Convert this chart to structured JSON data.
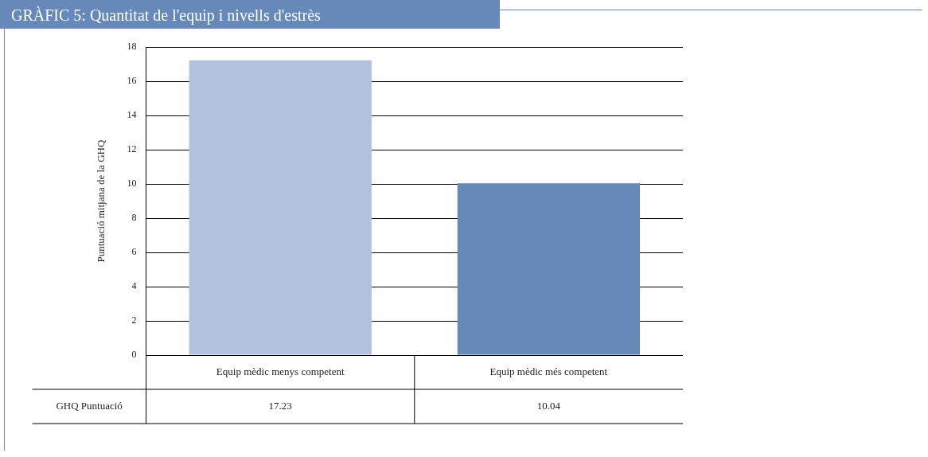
{
  "chart_data": {
    "type": "bar",
    "title": "GRÀFIC 5: Quantitat de l'equip i nivells d'estrès",
    "ylabel": "Puntuació mitjana de la GHQ",
    "categories": [
      "Equip mèdic menys competent",
      "Equip mèdic més competent"
    ],
    "series": [
      {
        "name": "GHQ Puntuació",
        "colors": [
          "#b3c2dc",
          "#6689ba"
        ],
        "values": [
          17.23,
          10.04
        ]
      }
    ],
    "ylim": [
      0,
      18
    ],
    "yticks": [
      0,
      2,
      4,
      6,
      8,
      10,
      12,
      14,
      16,
      18
    ],
    "grid": "y",
    "data_labels": true,
    "legend": false
  }
}
